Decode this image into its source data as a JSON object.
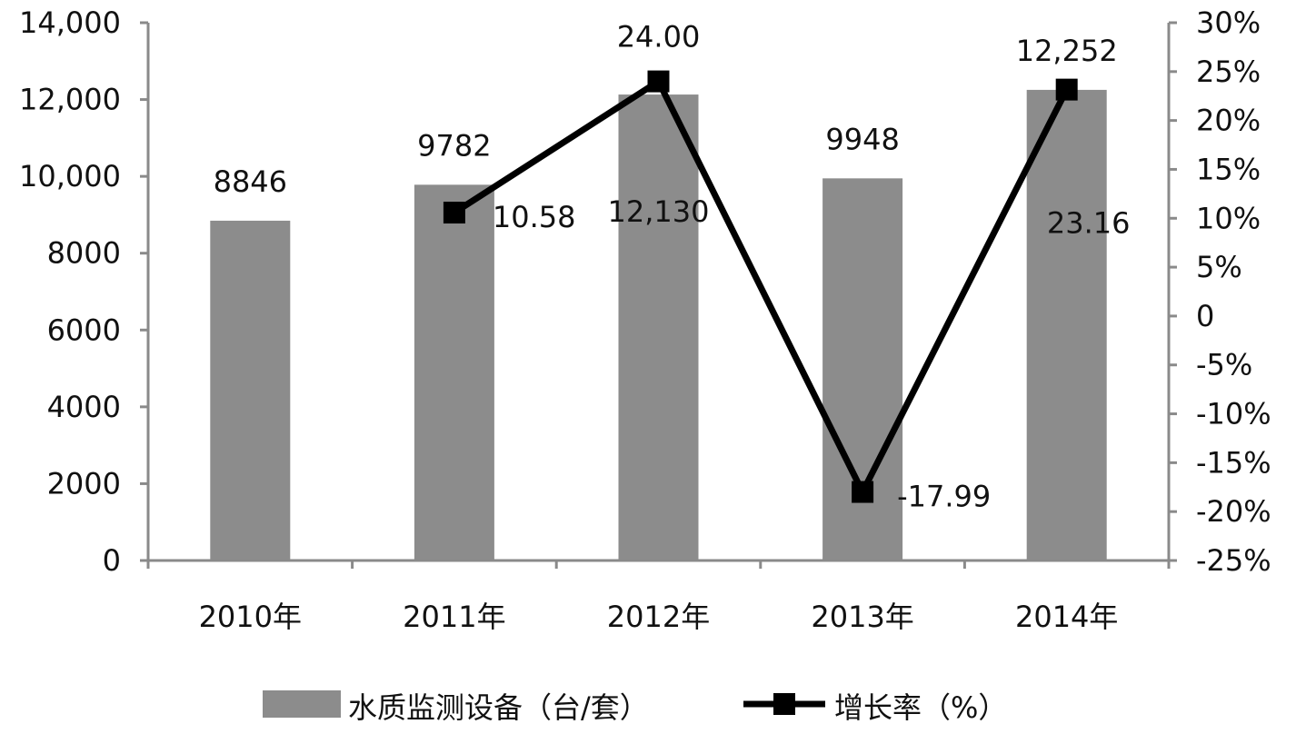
{
  "chart_data": {
    "type": "bar+line",
    "categories": [
      "2010年",
      "2011年",
      "2012年",
      "2013年",
      "2014年"
    ],
    "series": [
      {
        "name": "水质监测设备（台/套）",
        "type": "bar",
        "axis": "left",
        "values": [
          8846,
          9782,
          12130,
          9948,
          12252
        ],
        "value_labels": [
          "8846",
          "9782",
          "12,130",
          "9948",
          "12,252"
        ],
        "color": "#8c8c8c"
      },
      {
        "name": "增长率（%）",
        "type": "line",
        "axis": "right",
        "values": [
          null,
          10.58,
          24.0,
          -17.99,
          23.16
        ],
        "value_labels": [
          "",
          "10.58",
          "24.00",
          "-17.99",
          "23.16"
        ],
        "color": "#000000"
      }
    ],
    "y_left": {
      "min": 0,
      "max": 14000,
      "step": 2000,
      "tick_labels": [
        "0",
        "2000",
        "4000",
        "6000",
        "8000",
        "10,000",
        "12,000",
        "14,000"
      ]
    },
    "y_right": {
      "min": -25,
      "max": 30,
      "step": 5,
      "tick_labels": [
        "-25%",
        "-20%",
        "-15%",
        "-10%",
        "-5%",
        "0",
        "5%",
        "10%",
        "15%",
        "20%",
        "25%",
        "30%"
      ]
    },
    "title": "",
    "grid": false,
    "legend_position": "bottom"
  }
}
